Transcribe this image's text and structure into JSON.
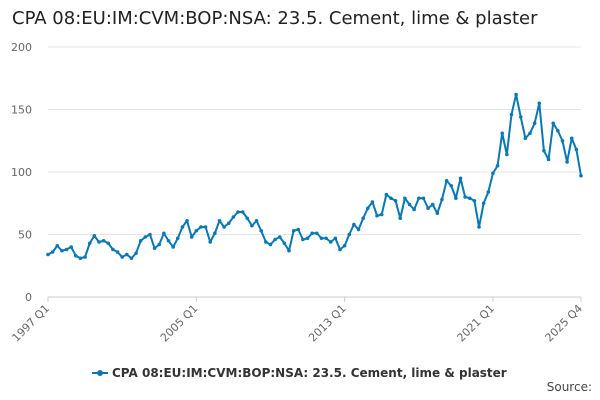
{
  "chart_data": {
    "type": "line",
    "title": "CPA 08:EU:IM:CVM:BOP:NSA: 23.5. Cement, lime & plaster",
    "xlabel": "",
    "ylabel": "",
    "ylim": [
      0,
      200
    ],
    "yticks": [
      0,
      50,
      100,
      150,
      200
    ],
    "xtick_labels": [
      "1997 Q1",
      "2005 Q1",
      "2013 Q1",
      "2021 Q1",
      "2025 Q4"
    ],
    "legend": "bottom",
    "grid": true,
    "color": "#0a78b4",
    "series": [
      {
        "name": "CPA 08:EU:IM:CVM:BOP:NSA: 23.5. Cement, lime & plaster",
        "values": [
          34,
          36,
          41,
          37,
          38,
          40,
          33,
          31,
          32,
          43,
          49,
          44,
          45,
          43,
          38,
          36,
          32,
          34,
          31,
          35,
          45,
          48,
          50,
          39,
          42,
          51,
          45,
          40,
          47,
          56,
          61,
          48,
          53,
          56,
          56,
          44,
          51,
          61,
          56,
          59,
          64,
          68,
          68,
          63,
          57,
          61,
          53,
          44,
          42,
          46,
          48,
          43,
          37,
          53,
          54,
          46,
          47,
          51,
          51,
          47,
          47,
          44,
          47,
          38,
          41,
          50,
          58,
          54,
          63,
          71,
          76,
          65,
          66,
          82,
          79,
          77,
          63,
          79,
          74,
          70,
          79,
          79,
          71,
          74,
          67,
          78,
          93,
          89,
          79,
          95,
          80,
          79,
          77,
          56,
          75,
          84,
          99,
          105,
          131,
          114,
          146,
          162,
          144,
          127,
          131,
          139,
          155,
          117,
          110,
          139,
          133,
          125,
          108,
          127,
          118,
          97
        ]
      }
    ]
  },
  "source_label": "Source:"
}
